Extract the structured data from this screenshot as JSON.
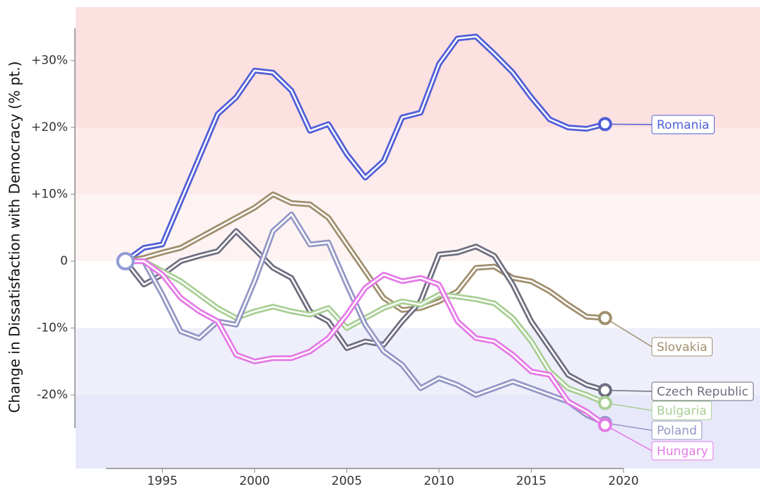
{
  "chart_data": {
    "type": "line",
    "y_label": "Change in Dissatisfaction with Democracy (% pt.)",
    "x": [
      1993,
      1994,
      1995,
      1996,
      1997,
      1998,
      1999,
      2000,
      2001,
      2002,
      2003,
      2004,
      2005,
      2006,
      2007,
      2008,
      2009,
      2010,
      2011,
      2012,
      2013,
      2014,
      2015,
      2016,
      2017,
      2018,
      2019
    ],
    "series": [
      {
        "name": "Romania",
        "color": "#4f5fd6",
        "values": [
          0,
          2,
          2.5,
          9,
          15.5,
          22,
          24.5,
          28.5,
          28.2,
          25.5,
          19.5,
          20.5,
          16,
          12.5,
          15,
          21.5,
          22.2,
          29.5,
          33.3,
          33.6,
          31,
          28.2,
          24.5,
          21.2,
          20,
          19.8,
          20.5
        ]
      },
      {
        "name": "Slovakia",
        "color": "#a08f6e",
        "values": [
          0,
          0.5,
          1.3,
          2,
          3.5,
          5,
          6.5,
          8,
          10,
          8.7,
          8.5,
          6.5,
          2.5,
          -1.5,
          -5.5,
          -7.3,
          -7,
          -6,
          -4.5,
          -1,
          -0.8,
          -2.5,
          -3,
          -4.5,
          -6.5,
          -8.3,
          -8.5
        ]
      },
      {
        "name": "Czech Republic",
        "color": "#6e6e80",
        "values": [
          0,
          -3.5,
          -2,
          0,
          0.8,
          1.5,
          4.5,
          1.8,
          -1,
          -2.5,
          -7.5,
          -9,
          -13,
          -12,
          -12.5,
          -9,
          -6,
          1,
          1.3,
          2.2,
          0.8,
          -3.5,
          -9,
          -13,
          -17,
          -18.5,
          -19.3
        ]
      },
      {
        "name": "Bulgaria",
        "color": "#a8cf94",
        "values": [
          0,
          0,
          -1.5,
          -3,
          -5,
          -7,
          -8.5,
          -7.5,
          -6.8,
          -7.5,
          -8,
          -7,
          -10,
          -8.5,
          -7,
          -6,
          -6.5,
          -5,
          -5.3,
          -5.7,
          -6.3,
          -8.5,
          -12,
          -16.5,
          -19,
          -20,
          -21.2
        ]
      },
      {
        "name": "Poland",
        "color": "#9497c6",
        "values": [
          0,
          0,
          -5,
          -10.5,
          -11.5,
          -9,
          -9.5,
          -3,
          4.5,
          7,
          2.5,
          2.8,
          -3.5,
          -9.5,
          -13.5,
          -15.5,
          -19,
          -17.5,
          -18.5,
          -20,
          -19,
          -18,
          -19,
          -20,
          -21,
          -23,
          -24.2
        ]
      },
      {
        "name": "Hungary",
        "color": "#e57ae6",
        "values": [
          0,
          0,
          -2,
          -5.5,
          -7.5,
          -9,
          -14,
          -15,
          -14.5,
          -14.5,
          -13.5,
          -11.5,
          -8,
          -4,
          -2,
          -3,
          -2.5,
          -3.5,
          -9,
          -11.5,
          -12,
          -14,
          -16.5,
          -17,
          -21,
          -22.5,
          -24.5
        ]
      }
    ],
    "xlim": [
      1990.3,
      2027.4
    ],
    "ylim": [
      -31,
      38
    ],
    "xticks": [
      1995,
      2000,
      2005,
      2010,
      2015,
      2020
    ],
    "yticks": [
      {
        "value": 30,
        "label": "+30%"
      },
      {
        "value": 20,
        "label": "+20%"
      },
      {
        "value": 10,
        "label": "+10%"
      },
      0,
      {
        "value": -10,
        "label": "-10%"
      },
      {
        "value": -20,
        "label": "-20%"
      }
    ]
  }
}
